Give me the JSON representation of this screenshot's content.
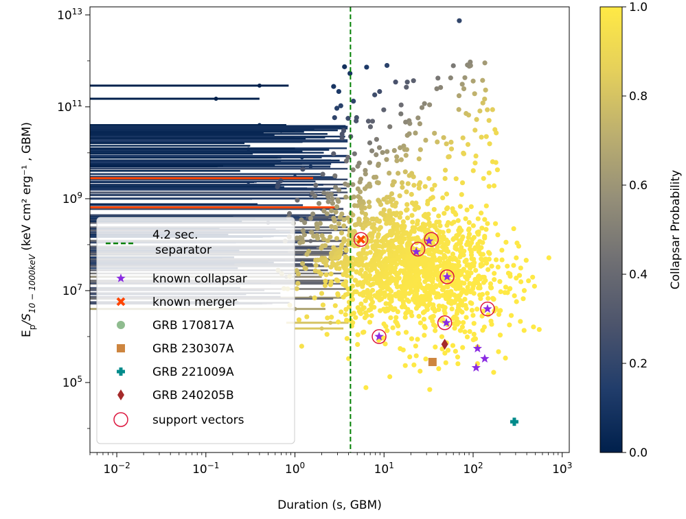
{
  "chart_data": {
    "type": "scatter",
    "xlabel": "Duration (s, GBM)",
    "ylabel_prefix": "E",
    "ylabel_sub1": "p",
    "ylabel_mid": "/S",
    "ylabel_sub2": "10 − 1000keV",
    "ylabel_rest": " (keV cm² erg⁻¹ , GBM)",
    "x_scale": "log",
    "y_scale": "log",
    "xlim": [
      0.005,
      1200
    ],
    "ylim": [
      3000,
      15000000000000
    ],
    "x_ticks": [
      {
        "value": 0.01,
        "base": "10",
        "exp": "−2"
      },
      {
        "value": 0.1,
        "base": "10",
        "exp": "−1"
      },
      {
        "value": 1,
        "base": "10",
        "exp": "0"
      },
      {
        "value": 10,
        "base": "10",
        "exp": "1"
      },
      {
        "value": 100,
        "base": "10",
        "exp": "2"
      },
      {
        "value": 1000,
        "base": "10",
        "exp": "3"
      }
    ],
    "y_ticks": [
      {
        "value": 100000,
        "base": "10",
        "exp": "5"
      },
      {
        "value": 10000000,
        "base": "10",
        "exp": "7"
      },
      {
        "value": 1000000000,
        "base": "10",
        "exp": "9"
      },
      {
        "value": 100000000000,
        "base": "10",
        "exp": "11"
      },
      {
        "value": 10000000000000,
        "base": "10",
        "exp": "13"
      }
    ],
    "separator_x": 4.2,
    "colorbar": {
      "label": "Collapsar Probability",
      "min": 0.0,
      "max": 1.0,
      "ticks": [
        "0.0",
        "0.2",
        "0.4",
        "0.6",
        "0.8",
        "1.0"
      ],
      "colormap": [
        "#00204c",
        "#213d6b",
        "#4c546c",
        "#6f6f73",
        "#958f78",
        "#bcaf6f",
        "#e5d05b",
        "#ffe945"
      ]
    },
    "colors": {
      "collapsar_star": "#8a2be2",
      "merger_x": "#ff4500",
      "grb170817a": "#8fbc8f",
      "grb230307a": "#cd853f",
      "grb221009a": "#008b8b",
      "grb240205b": "#a52a2a",
      "support_ring": "#dc143c",
      "separator": "#008000"
    },
    "legend": [
      {
        "label_line1": "4.2 sec.",
        "label_line2": "separator",
        "marker": "dashed-line"
      },
      {
        "label": "known collapsar",
        "marker": "star"
      },
      {
        "label": "known merger",
        "marker": "x"
      },
      {
        "label": "GRB 170817A",
        "marker": "circle"
      },
      {
        "label": "GRB 230307A",
        "marker": "square"
      },
      {
        "label": "GRB 221009A",
        "marker": "plus"
      },
      {
        "label": "GRB 240205B",
        "marker": "diamond"
      },
      {
        "label": "support vectors",
        "marker": "ring"
      }
    ],
    "special_points": {
      "known_collapsars": [
        [
          8.8,
          1000000
        ],
        [
          50,
          2000000
        ],
        [
          145,
          4000000
        ],
        [
          51,
          20000000
        ],
        [
          32,
          120000000
        ],
        [
          23,
          70000000
        ],
        [
          112,
          550000
        ],
        [
          108,
          210000
        ],
        [
          135,
          330000
        ]
      ],
      "known_mergers": [
        [
          5.5,
          130000000
        ]
      ],
      "grb_230307a": [
        [
          35,
          280000
        ]
      ],
      "grb_221009a": [
        [
          290,
          14000
        ]
      ],
      "grb_240205b": [
        [
          48,
          680000
        ]
      ],
      "support_vectors": [
        [
          8.8,
          1000000
        ],
        [
          48,
          2000000
        ],
        [
          145,
          4000000
        ],
        [
          51,
          20000000
        ],
        [
          34,
          130000000
        ],
        [
          24,
          80000000
        ],
        [
          5.5,
          130000000
        ]
      ]
    },
    "error_bar_points": [
      {
        "x": 0.4,
        "y": 290000000000,
        "xerr_low": 0.005,
        "xerr_high": 0.85,
        "p": 0.0
      },
      {
        "x": 0.13,
        "y": 150000000000,
        "xerr_low": 0.005,
        "xerr_high": 0.4,
        "p": 0.0
      },
      {
        "x": 0.4,
        "y": 40000000000,
        "xerr_low": 0.005,
        "xerr_high": 0.8,
        "p": 0.02
      },
      {
        "x": 0.7,
        "y": 30000000000,
        "xerr_low": 0.005,
        "xerr_high": 1.0,
        "p": 0.03
      },
      {
        "x": 0.6,
        "y": 20000000000,
        "xerr_low": 0.005,
        "xerr_high": 1.2,
        "p": 0.04
      },
      {
        "x": 0.3,
        "y": 12000000000,
        "xerr_low": 0.005,
        "xerr_high": 0.6,
        "p": 0.05
      },
      {
        "x": 1.2,
        "y": 8000000000,
        "xerr_low": 0.005,
        "xerr_high": 2.0,
        "p": 0.07
      },
      {
        "x": 1.5,
        "y": 5000000000,
        "xerr_low": 0.005,
        "xerr_high": 2.5,
        "p": 0.1
      },
      {
        "x": 1.0,
        "y": 3000000000,
        "xerr_low": 0.005,
        "xerr_high": 2.0,
        "p": 0.13
      },
      {
        "x": 0.3,
        "y": 2000000000,
        "xerr_low": 0.005,
        "xerr_high": 0.7,
        "p": 0.16
      },
      {
        "x": 1.5,
        "y": 1200000000,
        "xerr_low": 0.005,
        "xerr_high": 3.0,
        "p": 0.2
      },
      {
        "x": 2.0,
        "y": 600000000,
        "xerr_low": 0.005,
        "xerr_high": 3.5,
        "p": 0.26
      },
      {
        "x": 0.5,
        "y": 300000000,
        "xerr_low": 0.005,
        "xerr_high": 1.0,
        "p": 0.33
      },
      {
        "x": 1.5,
        "y": 120000000,
        "xerr_low": 0.005,
        "xerr_high": 3.5,
        "p": 0.42
      },
      {
        "x": 2.0,
        "y": 60000000,
        "xerr_low": 0.005,
        "xerr_high": 3.5,
        "p": 0.5
      },
      {
        "x": 0.8,
        "y": 20000000,
        "xerr_low": 0.005,
        "xerr_high": 2.0,
        "p": 0.56
      },
      {
        "x": 1.5,
        "y": 7000000,
        "xerr_low": 0.005,
        "xerr_high": 3.5,
        "p": 0.63
      },
      {
        "x": 1.0,
        "y": 4000000,
        "xerr_low": 0.005,
        "xerr_high": 2.2,
        "p": 0.66
      },
      {
        "x": 2.5,
        "y": 2000000,
        "xerr_low": 0.8,
        "xerr_high": 4.0,
        "p": 0.8
      },
      {
        "x": 2.0,
        "y": 1500000,
        "xerr_low": 1.0,
        "xerr_high": 3.5,
        "p": 0.82
      },
      {
        "x": 0.07,
        "y": 2800000000,
        "xerr_low": 0.005,
        "xerr_high": 0.9,
        "p": 0.03
      }
    ]
  }
}
